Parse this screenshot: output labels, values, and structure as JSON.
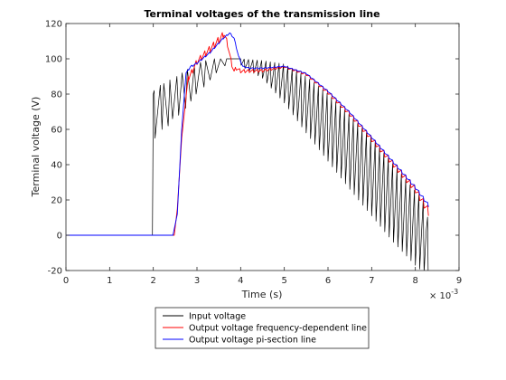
{
  "chart_data": {
    "type": "line",
    "title": "Terminal voltages of the transmission line",
    "xlabel": "Time (s)",
    "ylabel": "Terminal voltage (V)",
    "x_exponent_label": "× 10",
    "x_exponent_power": "-3",
    "xlim": [
      0,
      9
    ],
    "ylim": [
      -20,
      120
    ],
    "x_scale": 0.001,
    "xticks": [
      0,
      1,
      2,
      3,
      4,
      5,
      6,
      7,
      8,
      9
    ],
    "yticks": [
      -20,
      0,
      20,
      40,
      60,
      80,
      100,
      120
    ],
    "grid": false,
    "legend_position": "below-center",
    "series": [
      {
        "name": "Input voltage",
        "color": "#000000",
        "x": [
          0,
          1.98,
          2.0,
          2.02,
          2.04,
          2.16,
          2.2,
          2.24,
          2.34,
          2.38,
          2.44,
          2.54,
          2.58,
          2.66,
          2.74,
          2.78,
          2.86,
          2.94,
          2.98,
          3.08,
          3.16,
          3.2,
          3.3,
          3.4,
          3.44,
          3.54,
          3.64,
          3.68,
          3.8,
          3.9,
          4.0,
          4.5,
          5.0,
          5.5,
          6.0,
          6.5,
          7.0,
          7.5,
          8.0,
          8.25,
          8.32
        ],
        "y": [
          0,
          0,
          80,
          82,
          55,
          85,
          60,
          86,
          62,
          88,
          66,
          90,
          68,
          92,
          72,
          94,
          76,
          96,
          80,
          98,
          84,
          99,
          88,
          100,
          92,
          100,
          96,
          100,
          100,
          100,
          100,
          99,
          97,
          90,
          80,
          68,
          55,
          40,
          25,
          18,
          0
        ],
        "oscillation": [
          {
            "x": 4.0,
            "amp": 4
          },
          {
            "x": 4.5,
            "amp": 10
          },
          {
            "x": 5.0,
            "amp": 22
          },
          {
            "x": 5.5,
            "amp": 32
          },
          {
            "x": 6.0,
            "amp": 38
          },
          {
            "x": 6.5,
            "amp": 42
          },
          {
            "x": 7.0,
            "amp": 44
          },
          {
            "x": 7.5,
            "amp": 44
          },
          {
            "x": 8.0,
            "amp": 42
          },
          {
            "x": 8.3,
            "amp": 40
          }
        ]
      },
      {
        "name": "Output voltage frequency-dependent line",
        "color": "#ff0000",
        "x": [
          0,
          2.48,
          2.55,
          2.65,
          2.8,
          3.0,
          3.2,
          3.4,
          3.55,
          3.62,
          3.7,
          3.78,
          3.85,
          3.9,
          4.0,
          4.5,
          5.0,
          5.5,
          6.0,
          6.5,
          7.0,
          7.5,
          8.0,
          8.3
        ],
        "y": [
          0,
          0,
          15,
          55,
          90,
          100,
          105,
          110,
          114,
          116,
          110,
          100,
          94,
          96,
          94,
          94,
          96,
          92,
          82,
          70,
          56,
          42,
          28,
          16
        ],
        "oscillation": [
          {
            "x": 2.8,
            "amp": 3
          },
          {
            "x": 3.5,
            "amp": 4
          },
          {
            "x": 4.0,
            "amp": 2
          },
          {
            "x": 5.0,
            "amp": 1
          },
          {
            "x": 6.0,
            "amp": 2
          },
          {
            "x": 7.0,
            "amp": 3
          },
          {
            "x": 8.0,
            "amp": 4
          },
          {
            "x": 8.3,
            "amp": 5
          }
        ]
      },
      {
        "name": "Output voltage pi-section line",
        "color": "#0000ff",
        "x": [
          0,
          2.45,
          2.55,
          2.65,
          2.75,
          2.85,
          3.0,
          3.3,
          3.6,
          3.75,
          3.85,
          3.95,
          4.05,
          4.2,
          4.5,
          5.0,
          5.5,
          6.0,
          6.5,
          7.0,
          7.5,
          8.0,
          8.3
        ],
        "y": [
          0,
          0,
          12,
          60,
          92,
          96,
          98,
          104,
          112,
          115,
          112,
          102,
          96,
          95,
          95,
          96,
          92,
          82,
          70,
          56,
          42,
          28,
          18
        ],
        "oscillation": [
          {
            "x": 2.8,
            "amp": 1
          },
          {
            "x": 5.0,
            "amp": 0.5
          },
          {
            "x": 7.0,
            "amp": 1
          },
          {
            "x": 8.3,
            "amp": 2
          }
        ]
      }
    ]
  }
}
